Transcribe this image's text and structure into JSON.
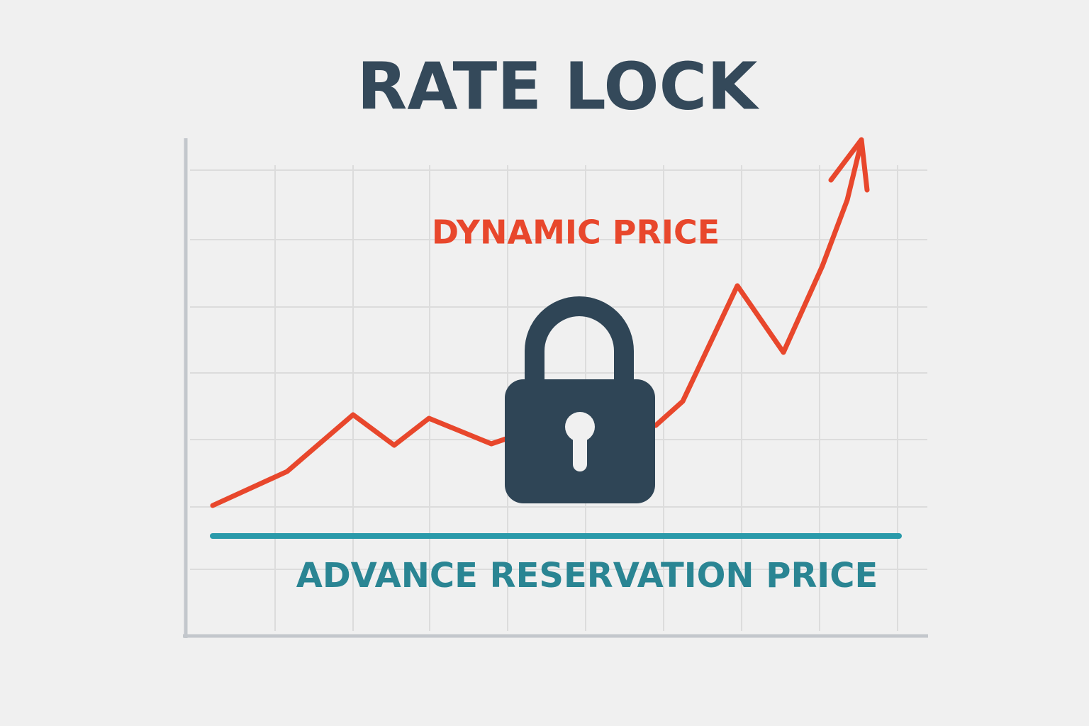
{
  "title": "RATE LOCK",
  "labels": {
    "dynamic": "DYNAMIC PRICE",
    "advance": "ADVANCE RESERVATION PRICE"
  }
}
